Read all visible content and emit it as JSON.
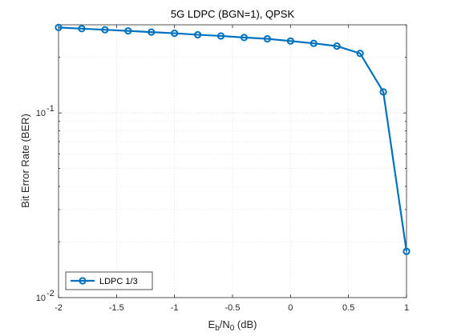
{
  "chart_data": {
    "type": "line",
    "title": "5G LDPC (BGN=1), QPSK",
    "xlabel": {
      "base": "E",
      "sub1": "b",
      "mid": "/N",
      "sub2": "0",
      "tail": " (dB)"
    },
    "ylabel": "Bit Error Rate (BER)",
    "xlim": [
      -2,
      1
    ],
    "ylim": [
      0.01,
      0.3
    ],
    "yscale": "log",
    "grid": true,
    "legend_position": "bottom-left",
    "x_ticks": [
      {
        "value": -2,
        "label": "-2"
      },
      {
        "value": -1.5,
        "label": "-1.5"
      },
      {
        "value": -1,
        "label": "-1"
      },
      {
        "value": -0.5,
        "label": "-0.5"
      },
      {
        "value": 0,
        "label": "0"
      },
      {
        "value": 0.5,
        "label": "0.5"
      },
      {
        "value": 1,
        "label": "1"
      }
    ],
    "y_major_ticks": [
      {
        "value": 0.01,
        "mantissa": "10",
        "exponent": "-2"
      },
      {
        "value": 0.1,
        "mantissa": "10",
        "exponent": "-1"
      }
    ],
    "series": [
      {
        "name": "LDPC 1/3",
        "color": "#0072BD",
        "marker": "circle",
        "x": [
          -2,
          -1.8,
          -1.6,
          -1.4,
          -1.2,
          -1,
          -0.8,
          -0.6,
          -0.4,
          -0.2,
          0,
          0.2,
          0.4,
          0.6,
          0.8,
          1
        ],
        "y": [
          0.29,
          0.286,
          0.282,
          0.278,
          0.274,
          0.27,
          0.265,
          0.261,
          0.256,
          0.252,
          0.245,
          0.238,
          0.23,
          0.21,
          0.13,
          0.0178
        ]
      }
    ]
  }
}
